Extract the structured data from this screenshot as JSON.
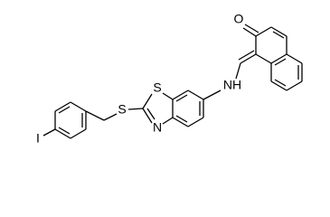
{
  "atoms": [
    {
      "label": "O"
    },
    {
      "label": "NH"
    },
    {
      "label": "S"
    },
    {
      "label": "N"
    },
    {
      "label": "S"
    },
    {
      "label": "I"
    }
  ]
}
